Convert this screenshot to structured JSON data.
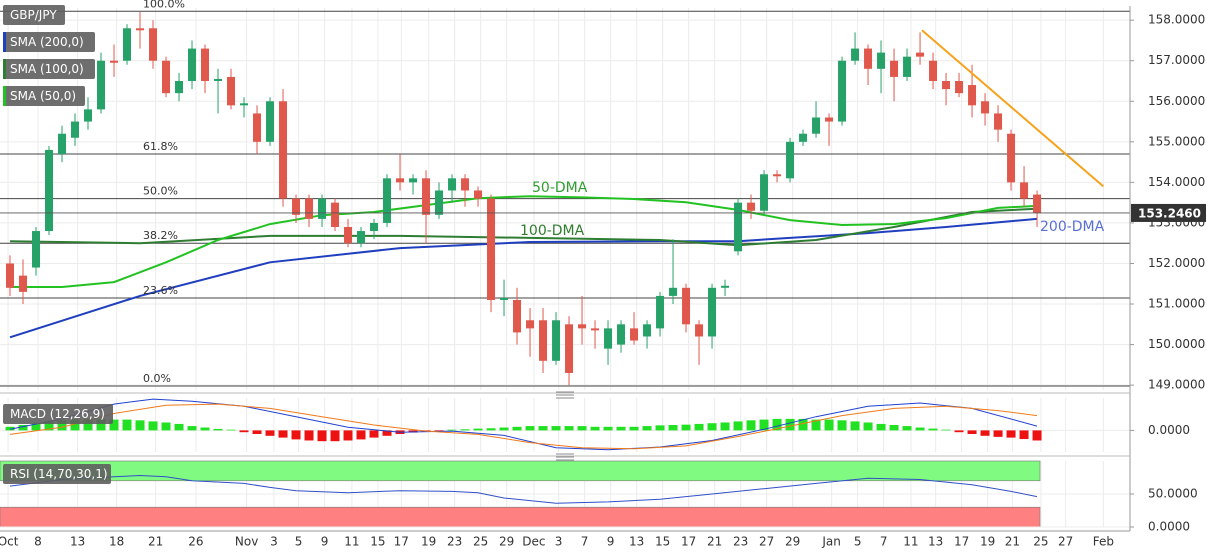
{
  "chart_data": [
    {
      "type": "candlestick",
      "title": "GBP/JPY",
      "x": [
        0,
        1,
        2,
        3,
        4,
        5,
        6,
        7,
        8,
        9,
        10,
        11,
        12,
        13,
        14,
        15,
        16,
        17,
        18,
        19,
        20,
        21,
        22,
        23,
        24,
        25,
        26,
        27,
        28,
        29,
        30,
        31,
        32,
        33,
        34,
        35,
        36,
        37,
        38,
        39,
        40,
        41,
        42,
        43,
        44,
        45,
        46,
        47,
        48,
        49,
        50,
        51,
        52,
        53,
        54,
        55,
        56,
        57,
        58,
        59,
        60,
        61,
        62,
        63,
        64,
        65,
        66,
        67,
        68,
        69,
        70,
        71,
        72,
        73,
        74,
        75,
        76,
        77,
        78,
        79
      ],
      "open": [
        152.0,
        151.7,
        151.9,
        152.8,
        154.7,
        155.1,
        155.5,
        155.8,
        157.0,
        157.0,
        157.8,
        157.8,
        157.0,
        156.2,
        156.5,
        157.3,
        156.5,
        156.6,
        155.9,
        155.7,
        155.0,
        156.0,
        153.6,
        153.6,
        153.1,
        153.5,
        152.9,
        152.5,
        152.8,
        153.0,
        154.1,
        154.0,
        154.1,
        153.2,
        153.8,
        154.1,
        153.8,
        153.6,
        151.1,
        151.1,
        150.6,
        150.6,
        149.6,
        150.5,
        150.5,
        150.4,
        149.9,
        150.0,
        150.4,
        150.2,
        150.4,
        151.2,
        151.4,
        150.5,
        150.2,
        151.4,
        152.3,
        153.5,
        153.3,
        154.2,
        154.1,
        155.0,
        155.2,
        155.6,
        155.5,
        157.0,
        157.3,
        156.8,
        157.0,
        156.6,
        157.2,
        157.0,
        156.5,
        156.5,
        156.4,
        156.0,
        155.7,
        155.2,
        154.0,
        153.7
      ],
      "high": [
        152.2,
        152.1,
        152.9,
        154.9,
        155.4,
        155.7,
        156.1,
        157.2,
        157.4,
        157.9,
        158.2,
        158.0,
        157.1,
        156.7,
        157.5,
        157.4,
        156.8,
        156.8,
        156.1,
        155.9,
        156.1,
        156.3,
        153.7,
        153.7,
        153.7,
        153.6,
        153.1,
        152.9,
        153.1,
        154.2,
        154.7,
        154.2,
        154.3,
        154.0,
        154.2,
        154.2,
        153.9,
        153.7,
        151.6,
        151.4,
        150.9,
        150.9,
        150.8,
        150.7,
        151.2,
        150.6,
        150.6,
        150.6,
        150.8,
        150.6,
        151.3,
        152.6,
        151.5,
        150.6,
        151.5,
        151.6,
        153.6,
        153.7,
        154.3,
        154.3,
        155.1,
        155.3,
        156.0,
        155.7,
        157.1,
        157.7,
        157.4,
        157.5,
        157.3,
        157.3,
        157.7,
        157.2,
        156.7,
        156.7,
        156.9,
        156.2,
        155.9,
        155.3,
        154.4,
        153.8
      ],
      "low": [
        151.2,
        151.0,
        151.7,
        152.7,
        154.5,
        154.9,
        155.3,
        155.7,
        156.6,
        156.9,
        157.3,
        156.8,
        156.1,
        156.0,
        156.3,
        156.2,
        155.7,
        155.8,
        155.6,
        154.7,
        154.9,
        153.4,
        153.0,
        152.9,
        152.9,
        152.8,
        152.4,
        152.4,
        152.6,
        152.9,
        153.8,
        153.7,
        152.5,
        153.1,
        153.5,
        153.4,
        153.4,
        150.8,
        150.7,
        150.0,
        149.7,
        149.3,
        149.5,
        149.0,
        150.0,
        149.9,
        149.5,
        149.8,
        150.0,
        149.9,
        150.2,
        151.0,
        150.3,
        149.5,
        149.9,
        151.2,
        152.2,
        153.1,
        153.2,
        154.0,
        154.0,
        154.9,
        155.1,
        154.9,
        155.4,
        156.9,
        156.4,
        156.2,
        156.0,
        156.5,
        156.9,
        156.3,
        155.9,
        156.1,
        155.6,
        155.4,
        155.0,
        153.8,
        153.4,
        152.9
      ],
      "close": [
        151.4,
        151.3,
        152.8,
        154.8,
        155.2,
        155.5,
        155.8,
        157.0,
        156.95,
        157.8,
        157.75,
        157.0,
        156.2,
        156.5,
        157.3,
        156.5,
        156.55,
        155.9,
        155.95,
        155.0,
        156.0,
        153.6,
        153.2,
        153.1,
        153.6,
        152.9,
        152.5,
        152.8,
        153.0,
        154.1,
        154.0,
        154.1,
        153.2,
        153.8,
        154.1,
        153.8,
        153.6,
        151.1,
        151.15,
        150.3,
        150.4,
        149.6,
        150.6,
        149.3,
        150.4,
        150.35,
        150.4,
        150.5,
        150.1,
        150.5,
        151.2,
        151.4,
        150.5,
        150.2,
        151.4,
        151.45,
        153.5,
        153.3,
        154.2,
        154.15,
        155.0,
        155.2,
        155.6,
        155.5,
        157.0,
        157.3,
        156.8,
        157.2,
        156.6,
        157.1,
        157.1,
        156.5,
        156.3,
        156.2,
        155.9,
        155.7,
        155.3,
        154.0,
        153.6,
        153.25
      ],
      "up_color": "#26a269",
      "down_color": "#e0584c",
      "xlim": [
        -0.77,
        86.15
      ],
      "xticks": [
        {
          "value": -0.15,
          "label": "Oct"
        },
        {
          "value": 2.15,
          "label": "8"
        },
        {
          "value": 5.2,
          "label": "13"
        },
        {
          "value": 8.2,
          "label": "18"
        },
        {
          "value": 11.2,
          "label": "21"
        },
        {
          "value": 14.3,
          "label": "26"
        },
        {
          "value": 18.2,
          "label": "Nov"
        },
        {
          "value": 20.3,
          "label": "3"
        },
        {
          "value": 22.2,
          "label": "5"
        },
        {
          "value": 24.2,
          "label": "9"
        },
        {
          "value": 26.3,
          "label": "11"
        },
        {
          "value": 28.3,
          "label": "15"
        },
        {
          "value": 30.1,
          "label": "17"
        },
        {
          "value": 32.2,
          "label": "19"
        },
        {
          "value": 34.2,
          "label": "23"
        },
        {
          "value": 36.2,
          "label": "25"
        },
        {
          "value": 38.2,
          "label": "29"
        },
        {
          "value": 40.3,
          "label": "Dec"
        },
        {
          "value": 42.2,
          "label": "3"
        },
        {
          "value": 44.2,
          "label": "7"
        },
        {
          "value": 46.2,
          "label": "9"
        },
        {
          "value": 48.2,
          "label": "13"
        },
        {
          "value": 50.2,
          "label": "15"
        },
        {
          "value": 52.2,
          "label": "17"
        },
        {
          "value": 54.2,
          "label": "21"
        },
        {
          "value": 56.2,
          "label": "23"
        },
        {
          "value": 58.2,
          "label": "27"
        },
        {
          "value": 60.2,
          "label": "29"
        },
        {
          "value": 63.2,
          "label": "Jan"
        },
        {
          "value": 65.2,
          "label": "5"
        },
        {
          "value": 67.2,
          "label": "7"
        },
        {
          "value": 69.3,
          "label": "11"
        },
        {
          "value": 71.2,
          "label": "13"
        },
        {
          "value": 73.2,
          "label": "17"
        },
        {
          "value": 75.2,
          "label": "19"
        },
        {
          "value": 77.1,
          "label": "21"
        },
        {
          "value": 79.3,
          "label": "25"
        },
        {
          "value": 81.2,
          "label": "27"
        },
        {
          "value": 84.1,
          "label": "Feb"
        }
      ],
      "ylim": [
        148.88,
        158.3
      ],
      "yticks": [
        {
          "value": 149,
          "label": "149.0000"
        },
        {
          "value": 150,
          "label": "150.0000"
        },
        {
          "value": 151,
          "label": "151.0000"
        },
        {
          "value": 152,
          "label": "152.0000"
        },
        {
          "value": 153,
          "label": "153.0000"
        },
        {
          "value": 154,
          "label": "154.0000"
        },
        {
          "value": 155,
          "label": "155.0000"
        },
        {
          "value": 156,
          "label": "156.0000"
        },
        {
          "value": 157,
          "label": "157.0000"
        },
        {
          "value": 158,
          "label": "158.0000"
        }
      ],
      "grid": true,
      "lines": [
        {
          "name": "SMA (200,0)",
          "color": "#1f3fbf",
          "x": [
            0,
            10,
            20,
            30,
            40,
            50,
            56,
            60,
            66,
            72,
            79
          ],
          "values": [
            150.18,
            151.2,
            152.03,
            152.38,
            152.53,
            152.55,
            152.55,
            152.63,
            152.75,
            152.9,
            153.1
          ]
        },
        {
          "name": "SMA (100,0)",
          "color": "#2e7d32",
          "x": [
            0,
            10,
            20,
            30,
            40,
            50,
            56,
            62,
            68,
            74,
            79
          ],
          "values": [
            152.55,
            152.5,
            152.68,
            152.68,
            152.63,
            152.58,
            152.45,
            152.58,
            152.9,
            153.27,
            153.35
          ]
        },
        {
          "name": "SMA (50,0)",
          "color": "#22c222",
          "x": [
            0,
            4,
            8,
            12,
            16,
            20,
            24,
            28,
            32,
            36,
            40,
            44,
            48,
            52,
            56,
            60,
            64,
            68,
            72,
            76,
            79
          ],
          "values": [
            151.42,
            151.42,
            151.54,
            152.03,
            152.58,
            152.97,
            153.19,
            153.27,
            153.44,
            153.61,
            153.66,
            153.63,
            153.59,
            153.51,
            153.32,
            153.07,
            152.95,
            152.97,
            153.12,
            153.37,
            153.42
          ]
        }
      ],
      "fib_levels": [
        {
          "label": "100.0%",
          "price": 158.22
        },
        {
          "label": "61.8%",
          "price": 154.7
        },
        {
          "label": "50.0%",
          "price": 153.6
        },
        {
          "label": "38.2%",
          "price": 152.5
        },
        {
          "label": "23.6%",
          "price": 151.15
        },
        {
          "label": "0.0%",
          "price": 148.98
        }
      ],
      "trendline": {
        "color": "#f7a21b",
        "x": [
          70.15,
          84.1
        ],
        "values": [
          157.75,
          153.9
        ]
      },
      "last_price": {
        "value": 153.246,
        "label": "153.2460"
      },
      "annotations": [
        {
          "text": "50-DMA",
          "color": "#2f9e2f"
        },
        {
          "text": "100-DMA",
          "color": "#2f7d2f"
        },
        {
          "text": "200-DMA",
          "color": "#5a6fd6"
        }
      ]
    },
    {
      "type": "macd",
      "title": "MACD (12,26,9)",
      "ylim": [
        -0.6,
        0.9
      ],
      "yticks": [
        {
          "value": 0,
          "label": "0.0000"
        }
      ],
      "histogram": {
        "up_color": "#22e022",
        "down_color": "#ee1111",
        "values": [
          0.1,
          0.15,
          0.2,
          0.25,
          0.28,
          0.3,
          0.32,
          0.32,
          0.3,
          0.3,
          0.28,
          0.25,
          0.22,
          0.18,
          0.12,
          0.08,
          0.04,
          0.02,
          -0.05,
          -0.1,
          -0.15,
          -0.2,
          -0.25,
          -0.28,
          -0.3,
          -0.3,
          -0.28,
          -0.25,
          -0.2,
          -0.15,
          -0.1,
          -0.06,
          -0.03,
          -0.02,
          0.02,
          0.03,
          0.05,
          0.06,
          0.08,
          0.1,
          0.12,
          0.12,
          0.12,
          0.12,
          0.12,
          0.1,
          0.1,
          0.1,
          0.1,
          0.12,
          0.14,
          0.15,
          0.16,
          0.18,
          0.2,
          0.22,
          0.25,
          0.28,
          0.3,
          0.32,
          0.32,
          0.32,
          0.3,
          0.3,
          0.28,
          0.25,
          0.22,
          0.18,
          0.15,
          0.12,
          0.08,
          0.05,
          0.02,
          -0.05,
          -0.1,
          -0.15,
          -0.18,
          -0.2,
          -0.24,
          -0.28
        ]
      },
      "series": [
        {
          "color": "#2040d0",
          "x": [
            0,
            4,
            8,
            11,
            14,
            18,
            22,
            26,
            30,
            34,
            38,
            42,
            46,
            50,
            54,
            58,
            62,
            66,
            70,
            74,
            79
          ],
          "values": [
            0.03,
            0.32,
            0.73,
            0.87,
            0.81,
            0.67,
            0.38,
            0.09,
            -0.05,
            -0.02,
            -0.14,
            -0.48,
            -0.54,
            -0.46,
            -0.28,
            0.03,
            0.38,
            0.67,
            0.76,
            0.61,
            0.12
          ]
        },
        {
          "color": "#f07a1a",
          "x": [
            0,
            4,
            8,
            12,
            16,
            20,
            24,
            28,
            32,
            36,
            40,
            44,
            48,
            52,
            56,
            60,
            64,
            68,
            72,
            76,
            79
          ],
          "values": [
            -0.11,
            0.09,
            0.47,
            0.7,
            0.73,
            0.61,
            0.38,
            0.15,
            -0.02,
            -0.11,
            -0.34,
            -0.48,
            -0.51,
            -0.43,
            -0.17,
            0.12,
            0.41,
            0.61,
            0.67,
            0.55,
            0.41
          ]
        }
      ]
    },
    {
      "type": "rsi",
      "title": "RSI (14,70,30,1)",
      "ylim": [
        0,
        100
      ],
      "yticks": [
        {
          "value": 0,
          "label": "0.0000"
        },
        {
          "value": 50,
          "label": "50.0000"
        }
      ],
      "bands": [
        {
          "from": 70,
          "to": 100,
          "color": "#80fa80"
        },
        {
          "from": 0,
          "to": 30,
          "color": "#ff8080"
        }
      ],
      "series": [
        {
          "color": "#3050c8",
          "x": [
            0,
            4,
            8,
            10,
            12,
            14,
            18,
            20,
            22,
            26,
            30,
            34,
            36,
            38,
            42,
            46,
            50,
            54,
            58,
            62,
            66,
            70,
            74,
            77,
            79
          ],
          "values": [
            62,
            72,
            76,
            78,
            76,
            70,
            66,
            60,
            55,
            52,
            55,
            54,
            52,
            44,
            36,
            38,
            42,
            50,
            58,
            66,
            74,
            72,
            64,
            54,
            46
          ]
        }
      ]
    }
  ]
}
